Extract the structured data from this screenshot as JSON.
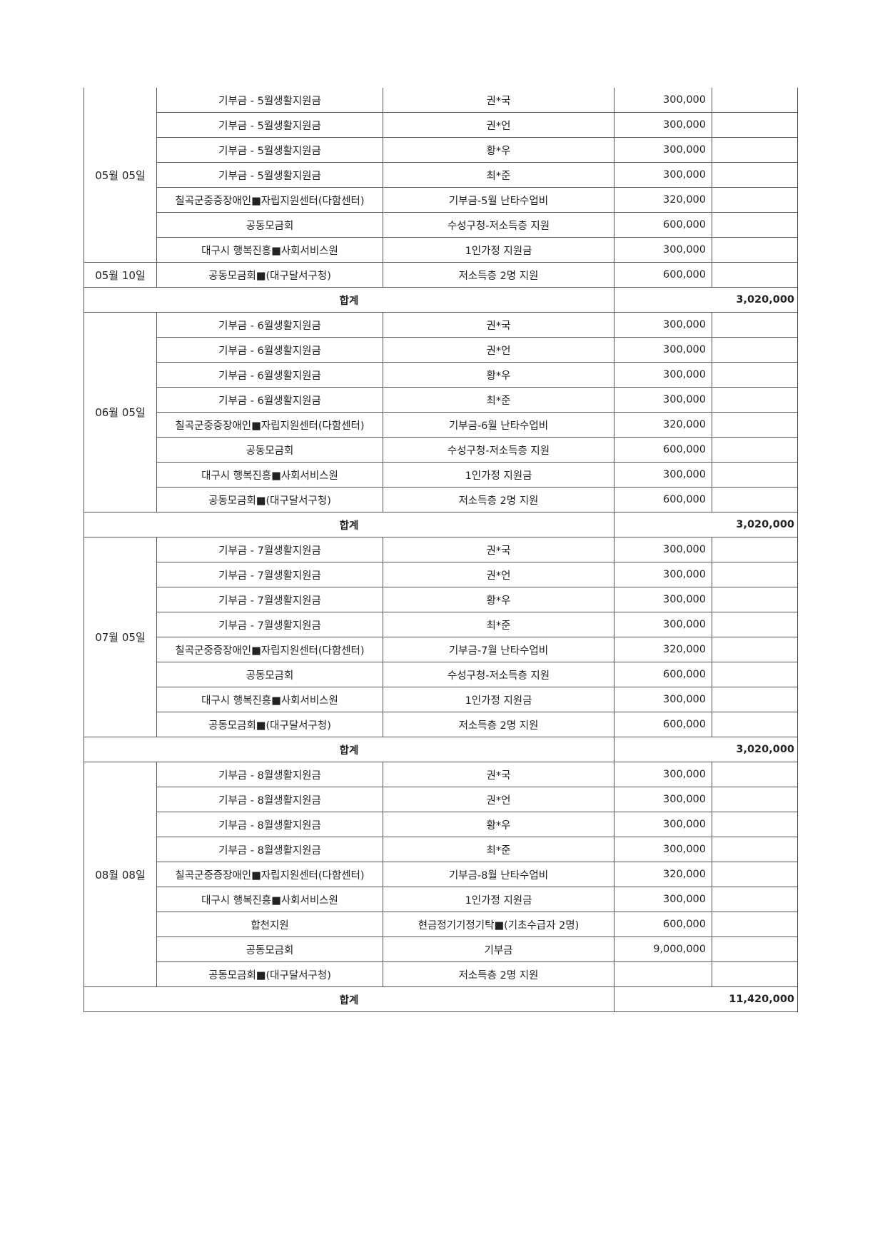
{
  "table": {
    "sections": [
      {
        "groups": [
          {
            "date": "05월 05일",
            "rows": [
              {
                "item": "기부금 - 5월생활지원금",
                "desc": "권*국",
                "amount": "300,000",
                "note": ""
              },
              {
                "item": "기부금 - 5월생활지원금",
                "desc": "권*언",
                "amount": "300,000",
                "note": ""
              },
              {
                "item": "기부금 - 5월생활지원금",
                "desc": "황*우",
                "amount": "300,000",
                "note": ""
              },
              {
                "item": "기부금 - 5월생활지원금",
                "desc": "최*준",
                "amount": "300,000",
                "note": ""
              },
              {
                "item": "칠곡군중증장애인■자립지원센터(다함센터)",
                "desc": "기부금-5월 난타수업비",
                "amount": "320,000",
                "note": ""
              },
              {
                "item": "공동모금회",
                "desc": "수성구청-저소득층 지원",
                "amount": "600,000",
                "note": ""
              },
              {
                "item": "대구시 행복진흥■사회서비스원",
                "desc": "1인가정 지원금",
                "amount": "300,000",
                "note": ""
              }
            ]
          },
          {
            "date": "05월 10일",
            "rows": [
              {
                "item": "공동모금회■(대구달서구청)",
                "desc": "저소득층 2명 지원",
                "amount": "600,000",
                "note": ""
              }
            ]
          }
        ],
        "total_label": "합계",
        "total": "3,020,000"
      },
      {
        "groups": [
          {
            "date": "06월 05일",
            "rows": [
              {
                "item": "기부금 - 6월생활지원금",
                "desc": "권*국",
                "amount": "300,000",
                "note": ""
              },
              {
                "item": "기부금 - 6월생활지원금",
                "desc": "권*언",
                "amount": "300,000",
                "note": ""
              },
              {
                "item": "기부금 - 6월생활지원금",
                "desc": "황*우",
                "amount": "300,000",
                "note": ""
              },
              {
                "item": "기부금 - 6월생활지원금",
                "desc": "최*준",
                "amount": "300,000",
                "note": ""
              },
              {
                "item": "칠곡군중증장애인■자립지원센터(다함센터)",
                "desc": "기부금-6월 난타수업비",
                "amount": "320,000",
                "note": ""
              },
              {
                "item": "공동모금회",
                "desc": "수성구청-저소득층 지원",
                "amount": "600,000",
                "note": ""
              },
              {
                "item": "대구시 행복진흥■사회서비스원",
                "desc": "1인가정 지원금",
                "amount": "300,000",
                "note": ""
              },
              {
                "item": "공동모금회■(대구달서구청)",
                "desc": "저소득층 2명 지원",
                "amount": "600,000",
                "note": ""
              }
            ]
          }
        ],
        "total_label": "합계",
        "total": "3,020,000"
      },
      {
        "groups": [
          {
            "date": "07월 05일",
            "rows": [
              {
                "item": "기부금 - 7월생활지원금",
                "desc": "권*국",
                "amount": "300,000",
                "note": ""
              },
              {
                "item": "기부금 - 7월생활지원금",
                "desc": "권*언",
                "amount": "300,000",
                "note": ""
              },
              {
                "item": "기부금 - 7월생활지원금",
                "desc": "황*우",
                "amount": "300,000",
                "note": ""
              },
              {
                "item": "기부금 - 7월생활지원금",
                "desc": "최*준",
                "amount": "300,000",
                "note": ""
              },
              {
                "item": "칠곡군중증장애인■자립지원센터(다함센터)",
                "desc": "기부금-7월 난타수업비",
                "amount": "320,000",
                "note": ""
              },
              {
                "item": "공동모금회",
                "desc": "수성구청-저소득층 지원",
                "amount": "600,000",
                "note": ""
              },
              {
                "item": "대구시 행복진흥■사회서비스원",
                "desc": "1인가정 지원금",
                "amount": "300,000",
                "note": ""
              },
              {
                "item": "공동모금회■(대구달서구청)",
                "desc": "저소득층 2명 지원",
                "amount": "600,000",
                "note": ""
              }
            ]
          }
        ],
        "total_label": "합계",
        "total": "3,020,000"
      },
      {
        "groups": [
          {
            "date": "08월 08일",
            "rows": [
              {
                "item": "기부금 - 8월생활지원금",
                "desc": "권*국",
                "amount": "300,000",
                "note": ""
              },
              {
                "item": "기부금 - 8월생활지원금",
                "desc": "권*언",
                "amount": "300,000",
                "note": ""
              },
              {
                "item": "기부금 - 8월생활지원금",
                "desc": "황*우",
                "amount": "300,000",
                "note": ""
              },
              {
                "item": "기부금 - 8월생활지원금",
                "desc": "최*준",
                "amount": "300,000",
                "note": ""
              },
              {
                "item": "칠곡군중증장애인■자립지원센터(다함센터)",
                "desc": "기부금-8월 난타수업비",
                "amount": "320,000",
                "note": ""
              },
              {
                "item": "대구시 행복진흥■사회서비스원",
                "desc": "1인가정 지원금",
                "amount": "300,000",
                "note": ""
              },
              {
                "item": "합천지원",
                "desc": "현금정기기정기탁■(기초수급자 2명)",
                "amount": "600,000",
                "note": ""
              },
              {
                "item": "공동모금회",
                "desc": "기부금",
                "amount": "9,000,000",
                "note": ""
              },
              {
                "item": "공동모금회■(대구달서구청)",
                "desc": "저소득층 2명 지원",
                "amount": "",
                "note": ""
              }
            ]
          }
        ],
        "total_label": "합계",
        "total": "11,420,000"
      }
    ]
  }
}
